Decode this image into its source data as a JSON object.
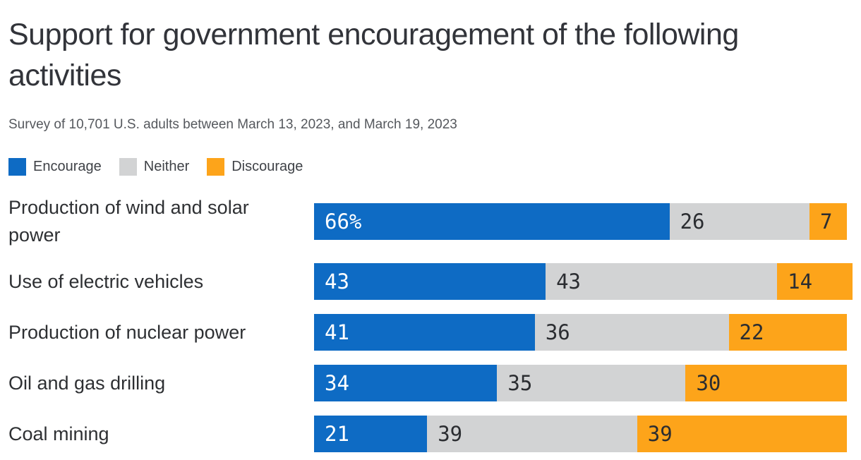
{
  "header": {
    "title": "Support for government encouragement of the following activities",
    "subtitle": "Survey of 10,701 U.S. adults between March 13, 2023, and March 19, 2023"
  },
  "legend": [
    {
      "label": "Encourage",
      "color": "#0e6bc4"
    },
    {
      "label": "Neither",
      "color": "#d2d3d4"
    },
    {
      "label": "Discourage",
      "color": "#fda41a"
    }
  ],
  "chart_data": {
    "type": "bar",
    "orientation": "horizontal-stacked",
    "title": "Support for government encouragement of the following activities",
    "subtitle": "Survey of 10,701 U.S. adults between March 13, 2023, and March 19, 2023",
    "xlim": [
      0,
      100
    ],
    "grid": false,
    "legend_position": "top-left",
    "categories": [
      "Production of wind and solar power",
      "Use of electric vehicles",
      "Production of nuclear power",
      "Oil and gas drilling",
      "Coal mining"
    ],
    "series": [
      {
        "name": "Encourage",
        "color": "#0e6bc4",
        "label_color": "#ffffff",
        "values": [
          66,
          43,
          41,
          34,
          21
        ]
      },
      {
        "name": "Neither",
        "color": "#d2d3d4",
        "label_color": "#2b2d31",
        "values": [
          26,
          43,
          36,
          35,
          39
        ]
      },
      {
        "name": "Discourage",
        "color": "#fda41a",
        "label_color": "#2b2d31",
        "values": [
          7,
          14,
          22,
          30,
          39
        ]
      }
    ],
    "value_labels": [
      [
        "66%",
        "26",
        "7"
      ],
      [
        "43",
        "43",
        "14"
      ],
      [
        "41",
        "36",
        "22"
      ],
      [
        "34",
        "35",
        "30"
      ],
      [
        "21",
        "39",
        "39"
      ]
    ]
  }
}
